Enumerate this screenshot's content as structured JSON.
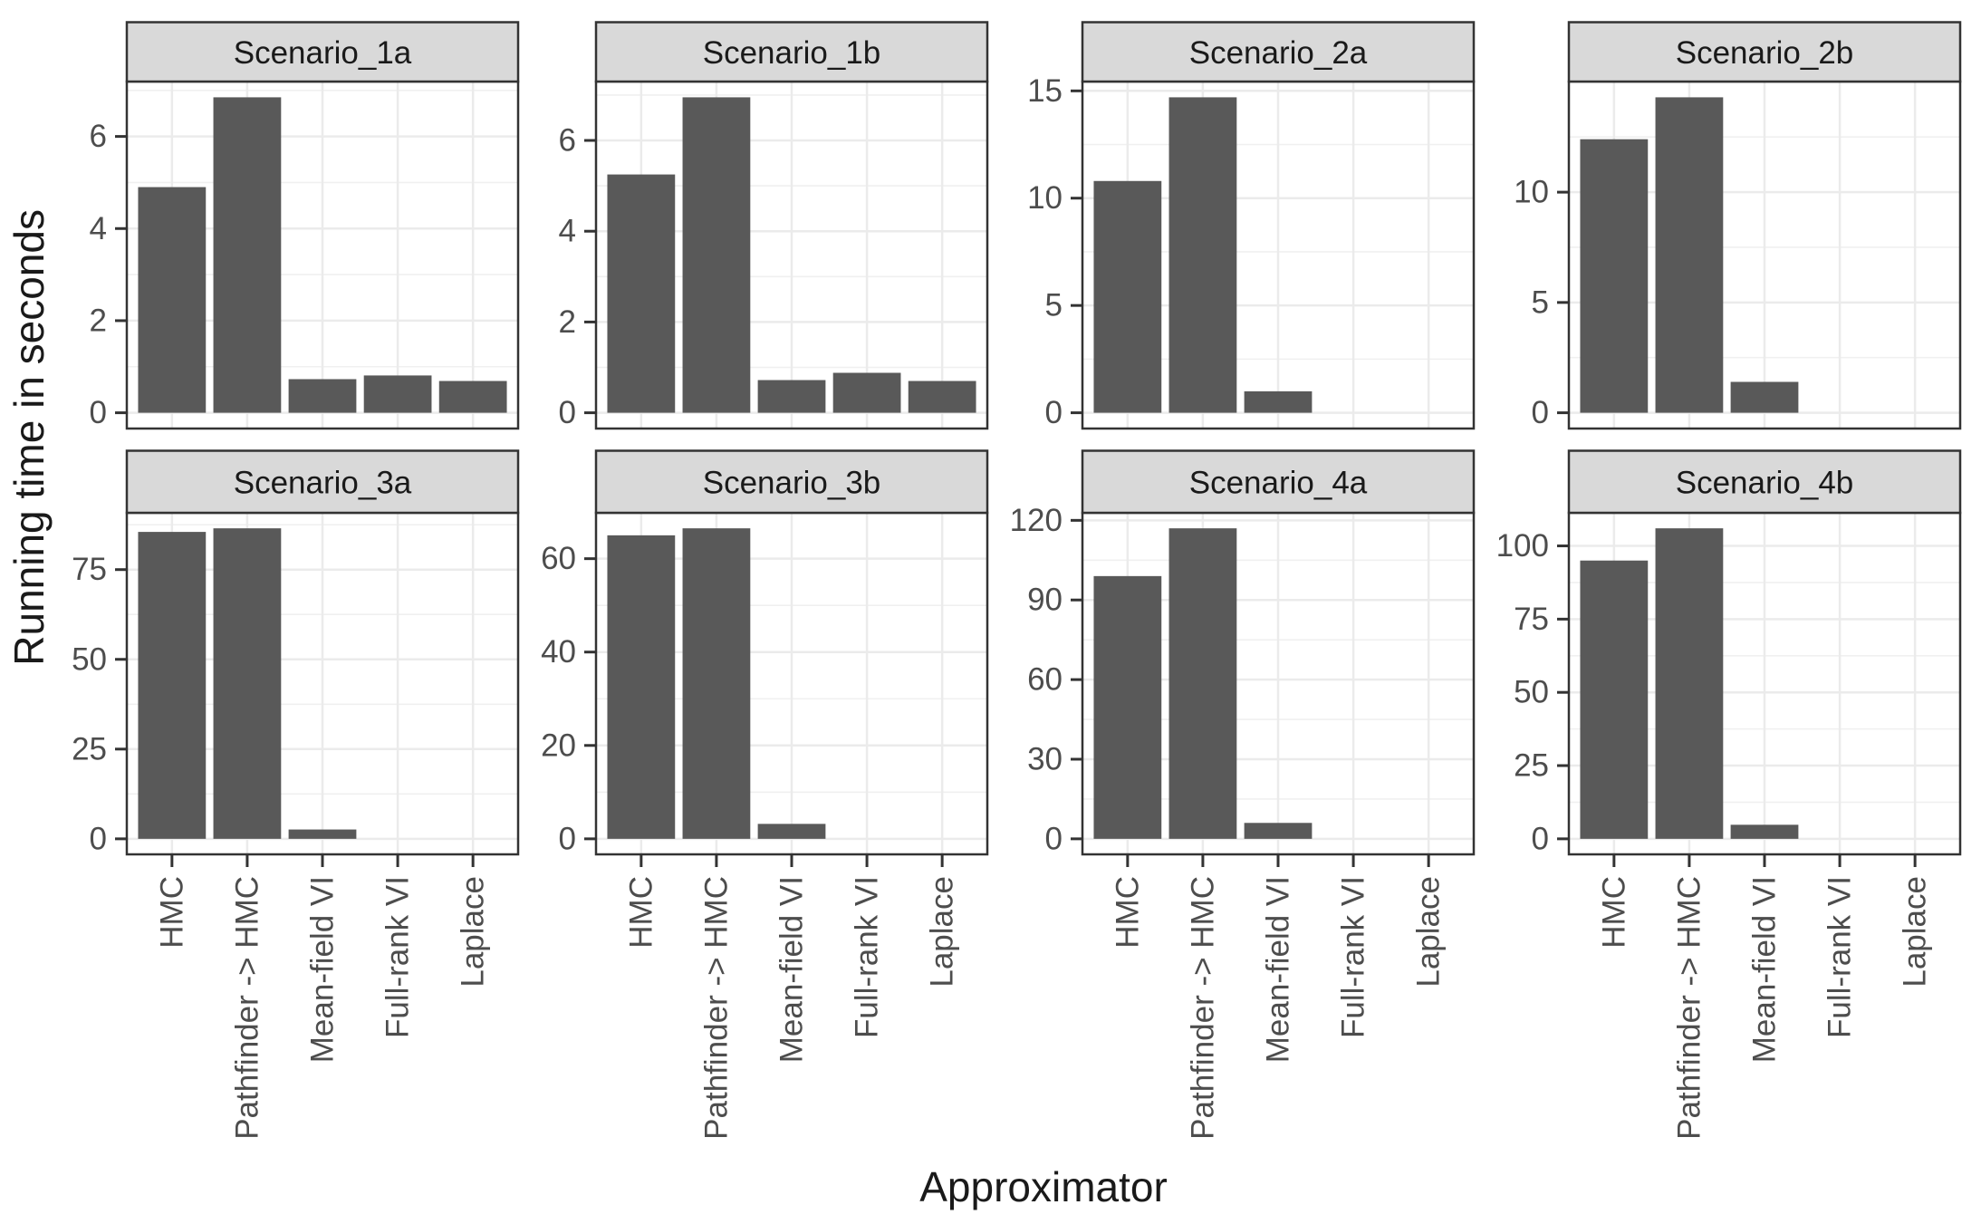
{
  "chart_data": {
    "type": "bar",
    "title": "",
    "xlabel": "Approximator",
    "ylabel": "Running time in seconds",
    "legend": "none",
    "grid": true,
    "layout": {
      "facet_rows": 2,
      "facet_cols": 4,
      "bar_width": 0.9
    },
    "categories": [
      "HMC",
      "Pathfinder -> HMC",
      "Mean-field VI",
      "Full-rank VI",
      "Laplace"
    ],
    "facets": [
      {
        "label": "Scenario_1a",
        "yticks": [
          0,
          2,
          4,
          6
        ],
        "values": [
          4.9,
          6.85,
          0.73,
          0.81,
          0.69
        ]
      },
      {
        "label": "Scenario_1b",
        "yticks": [
          0,
          2,
          4,
          6
        ],
        "values": [
          5.25,
          6.95,
          0.72,
          0.88,
          0.7
        ]
      },
      {
        "label": "Scenario_2a",
        "yticks": [
          0,
          5,
          10,
          15
        ],
        "values": [
          10.8,
          14.7,
          1.0,
          0,
          0
        ]
      },
      {
        "label": "Scenario_2b",
        "yticks": [
          0,
          5,
          10
        ],
        "values": [
          12.4,
          14.3,
          1.4,
          0,
          0
        ]
      },
      {
        "label": "Scenario_3a",
        "yticks": [
          0,
          25,
          50,
          75
        ],
        "values": [
          85.5,
          86.5,
          2.6,
          0,
          0
        ]
      },
      {
        "label": "Scenario_3b",
        "yticks": [
          0,
          20,
          40,
          60
        ],
        "values": [
          65,
          66.5,
          3.2,
          0,
          0
        ]
      },
      {
        "label": "Scenario_4a",
        "yticks": [
          0,
          30,
          60,
          90,
          120
        ],
        "values": [
          99,
          117,
          6,
          0,
          0
        ]
      },
      {
        "label": "Scenario_4b",
        "yticks": [
          0,
          25,
          50,
          75,
          100
        ],
        "values": [
          95,
          106,
          4.8,
          0,
          0
        ]
      }
    ],
    "colors": {
      "bar": "#595959",
      "strip_bg": "#D9D9D9",
      "panel_bg": "#FFFFFF",
      "panel_border": "#333333",
      "grid_major": "#EBEBEB",
      "grid_minor": "#F0F0F0",
      "axis_text": "#4D4D4D",
      "title_text": "#1A1A1A"
    }
  }
}
